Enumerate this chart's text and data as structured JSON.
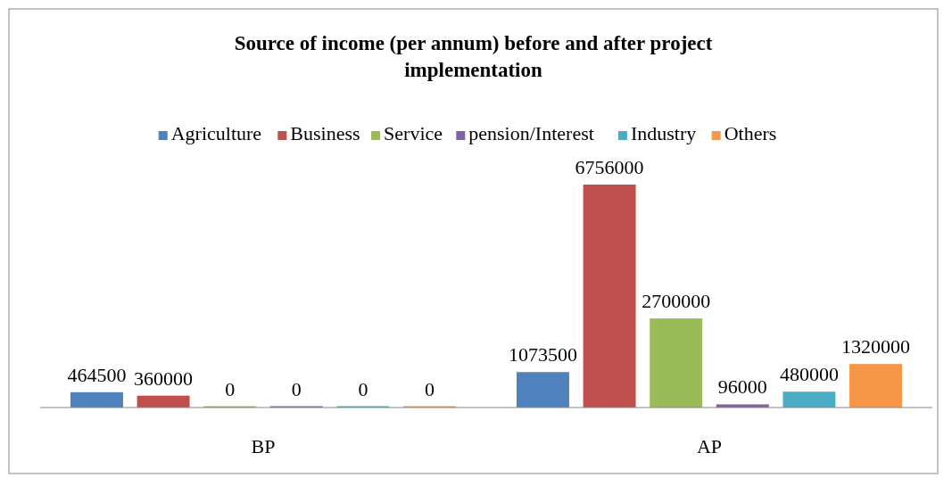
{
  "chart_data": {
    "type": "bar",
    "title": "Source of income (per annum) before and after project implementation",
    "categories": [
      "BP",
      "AP"
    ],
    "series": [
      {
        "name": "Agriculture",
        "color": "#4f81bd",
        "values": [
          464500,
          1073500
        ]
      },
      {
        "name": "Business",
        "color": "#c0504d",
        "values": [
          360000,
          6756000
        ]
      },
      {
        "name": "Service",
        "color": "#9bbb59",
        "values": [
          0,
          2700000
        ]
      },
      {
        "name": "pension/Interest",
        "color": "#8064a2",
        "values": [
          0,
          96000
        ]
      },
      {
        "name": "Industry",
        "color": "#4bacc6",
        "values": [
          0,
          480000
        ]
      },
      {
        "name": "Others",
        "color": "#f79646",
        "values": [
          0,
          1320000
        ]
      }
    ],
    "data_labels": true,
    "legend": "top"
  }
}
